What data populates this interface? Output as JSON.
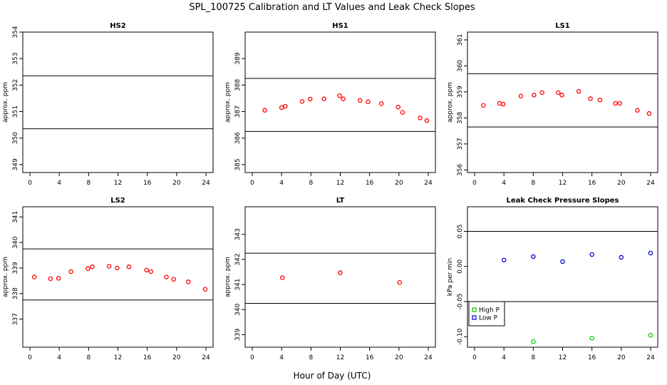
{
  "figure": {
    "title": "SPL_100725  Calibration and LT Values and Leak Check Slopes",
    "xlabel": "Hour of Day (UTC)"
  },
  "chart_data": [
    {
      "type": "scatter",
      "title": "HS2",
      "xlabel": "",
      "ylabel": "approx. ppm",
      "xlim": [
        0,
        24
      ],
      "ylim": [
        348.7,
        354
      ],
      "xticks": [
        0,
        4,
        8,
        12,
        16,
        20,
        24
      ],
      "yticks": [
        349,
        350,
        351,
        352,
        353,
        354
      ],
      "hlines": [
        350.35,
        352.35
      ],
      "grid": false,
      "series": [
        {
          "color": "#ff0000",
          "x": [],
          "y": []
        }
      ]
    },
    {
      "type": "scatter",
      "title": "HS1",
      "xlabel": "",
      "ylabel": "approx. ppm",
      "xlim": [
        0,
        24
      ],
      "ylim": [
        384.7,
        390
      ],
      "xticks": [
        0,
        4,
        8,
        12,
        16,
        20,
        24
      ],
      "yticks": [
        385,
        386,
        387,
        388,
        389
      ],
      "hlines": [
        386.25,
        388.25
      ],
      "grid": false,
      "series": [
        {
          "color": "#ff0000",
          "x": [
            1.7,
            4.0,
            4.5,
            6.8,
            7.9,
            9.8,
            11.9,
            12.4,
            14.7,
            15.8,
            17.6,
            19.9,
            20.5,
            22.9,
            23.8
          ],
          "y": [
            387.05,
            387.15,
            387.2,
            387.38,
            387.47,
            387.48,
            387.6,
            387.48,
            387.42,
            387.37,
            387.3,
            387.17,
            386.97,
            386.76,
            386.66
          ]
        }
      ]
    },
    {
      "type": "scatter",
      "title": "LS1",
      "xlabel": "",
      "ylabel": "approx. ppm",
      "xlim": [
        0,
        24
      ],
      "ylim": [
        355.9,
        361.3
      ],
      "xticks": [
        0,
        4,
        8,
        12,
        16,
        20,
        24
      ],
      "yticks": [
        356,
        357,
        358,
        359,
        360,
        361
      ],
      "hlines": [
        357.65,
        359.7
      ],
      "grid": false,
      "series": [
        {
          "color": "#ff0000",
          "x": [
            1.2,
            3.4,
            3.9,
            6.3,
            8.1,
            9.2,
            11.4,
            11.9,
            14.2,
            15.8,
            17.1,
            19.2,
            19.8,
            22.2,
            23.8
          ],
          "y": [
            358.48,
            358.56,
            358.53,
            358.84,
            358.88,
            358.97,
            358.97,
            358.88,
            359.02,
            358.74,
            358.69,
            358.56,
            358.56,
            358.29,
            358.17
          ]
        }
      ]
    },
    {
      "type": "scatter",
      "title": "LS2",
      "xlabel": "",
      "ylabel": "approx. ppm",
      "xlim": [
        0,
        24
      ],
      "ylim": [
        335.9,
        341.4
      ],
      "xticks": [
        0,
        4,
        8,
        12,
        16,
        20,
        24
      ],
      "yticks": [
        337,
        338,
        339,
        340,
        341
      ],
      "hlines": [
        337.75,
        339.75
      ],
      "grid": false,
      "series": [
        {
          "color": "#ff0000",
          "x": [
            0.6,
            2.8,
            3.9,
            5.6,
            7.9,
            8.5,
            10.8,
            11.9,
            13.5,
            15.9,
            16.5,
            18.6,
            19.6,
            21.6,
            23.9
          ],
          "y": [
            338.65,
            338.58,
            338.6,
            338.86,
            338.98,
            339.05,
            339.07,
            339.0,
            339.05,
            338.92,
            338.86,
            338.65,
            338.56,
            338.46,
            338.17
          ]
        }
      ]
    },
    {
      "type": "scatter",
      "title": "LT",
      "xlabel": "",
      "ylabel": "approx. ppm",
      "xlim": [
        0,
        24
      ],
      "ylim": [
        338.5,
        344.1
      ],
      "xticks": [
        0,
        4,
        8,
        12,
        16,
        20,
        24
      ],
      "yticks": [
        339,
        340,
        341,
        342,
        343
      ],
      "hlines": [
        340.25,
        342.25
      ],
      "grid": false,
      "series": [
        {
          "color": "#ff0000",
          "x": [
            4.1,
            12.0,
            20.1
          ],
          "y": [
            341.27,
            341.47,
            341.08
          ]
        }
      ]
    },
    {
      "type": "scatter",
      "title": "Leak Check Pressure Slopes",
      "xlabel": "",
      "ylabel": "kPa per min",
      "xlim": [
        0,
        24
      ],
      "ylim": [
        -0.115,
        0.085
      ],
      "xticks": [
        0,
        4,
        8,
        12,
        16,
        20,
        24
      ],
      "yticks": [
        -0.1,
        -0.05,
        0.0,
        0.05
      ],
      "ytick_labels": [
        "-0.10",
        "-0.05",
        "0.00",
        "0.05"
      ],
      "hlines": [
        -0.05,
        0.05
      ],
      "grid": false,
      "legend": "left",
      "series": [
        {
          "name": "High P",
          "color": "#00cc00",
          "x": [
            8.0,
            16.0,
            24.0
          ],
          "y": [
            -0.107,
            -0.102,
            -0.098
          ]
        },
        {
          "name": "Low P",
          "color": "#0000cc",
          "x": [
            4.0,
            8.0,
            12.0,
            16.0,
            20.0,
            24.0
          ],
          "y": [
            0.009,
            0.014,
            0.007,
            0.017,
            0.013,
            0.019
          ]
        }
      ]
    }
  ]
}
